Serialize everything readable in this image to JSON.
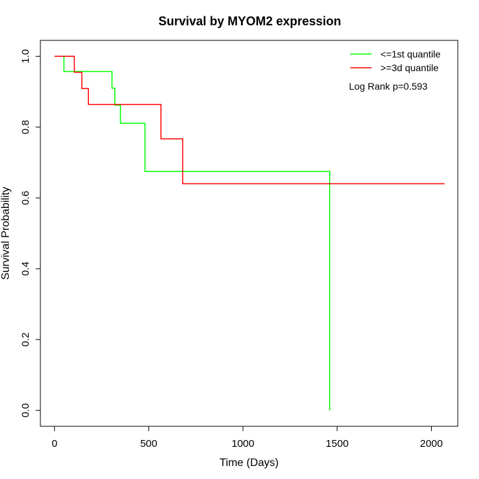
{
  "chart_data": {
    "type": "line",
    "subtype": "kaplan-meier step",
    "title": "Survival by MYOM2 expression",
    "xlabel": "Time (Days)",
    "ylabel": "Survival Probability",
    "xlim": [
      -75,
      2140
    ],
    "ylim": [
      -0.045,
      1.045
    ],
    "x_ticks": [
      0,
      500,
      1000,
      1500,
      2000
    ],
    "x_tick_labels": [
      "0",
      "500",
      "1000",
      "1500",
      "2000"
    ],
    "y_ticks": [
      0.0,
      0.2,
      0.4,
      0.6,
      0.8,
      1.0
    ],
    "y_tick_labels": [
      "0.0",
      "0.2",
      "0.4",
      "0.6",
      "0.8",
      "1.0"
    ],
    "grid": false,
    "legend_position": "top-right",
    "annotation": "Log Rank p=0.593",
    "series": [
      {
        "name": "<=1st quantile",
        "color": "#00ff00",
        "steps": [
          [
            0,
            1.0
          ],
          [
            50,
            0.957
          ],
          [
            305,
            0.91
          ],
          [
            320,
            0.862
          ],
          [
            350,
            0.811
          ],
          [
            480,
            0.675
          ],
          [
            1460,
            0.0
          ]
        ],
        "end_x": 1460
      },
      {
        "name": ">=3d quantile",
        "color": "#ff0000",
        "steps": [
          [
            0,
            1.0
          ],
          [
            105,
            0.955
          ],
          [
            145,
            0.909
          ],
          [
            180,
            0.864
          ],
          [
            565,
            0.767
          ],
          [
            680,
            0.64
          ]
        ],
        "end_x": 2070
      }
    ]
  }
}
